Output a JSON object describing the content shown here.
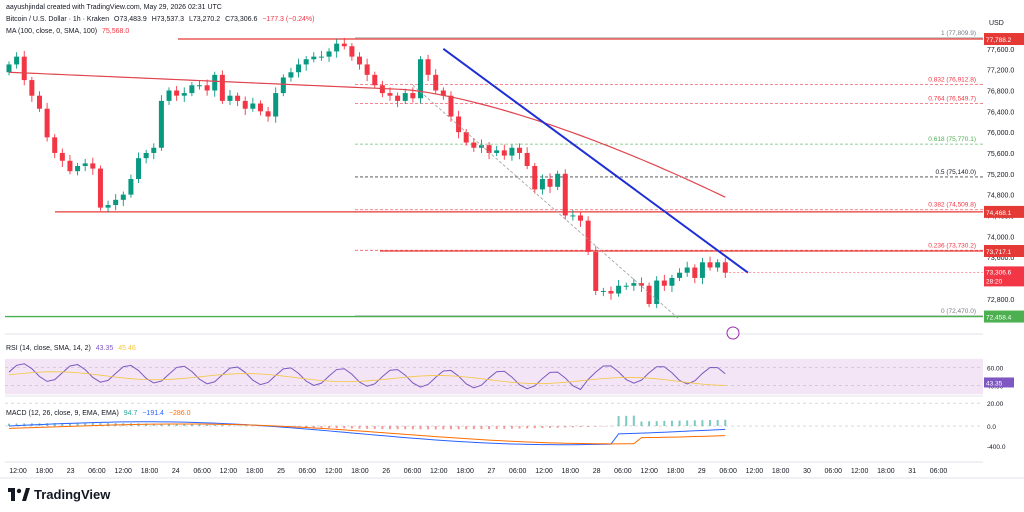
{
  "header": {
    "author_line": "aayushjindal created with TradingView.com, May 29, 2026 02:31 UTC",
    "symbol_line": "Bitcoin / U.S. Dollar · 1h · Kraken",
    "ohlc": [
      "O73,483.9",
      "H73,537.3",
      "L73,270.2",
      "C73,306.6",
      "−177.3 (−0.24%)"
    ],
    "ma_label": "MA (100, close, 0, SMA, 100)",
    "ma_value": "75,568.0",
    "rsi_label": "RSI (14, close, SMA, 14, 2)",
    "rsi_values": [
      "43.35",
      "45.46"
    ],
    "macd_label": "MACD (12, 26, close, 9, EMA, EMA)",
    "macd_values": [
      "94.7",
      "−191.4",
      "−286.0"
    ],
    "currency": "USD"
  },
  "footer": {
    "brand": "TradingView"
  },
  "colors": {
    "up": "#089981",
    "down": "#f23645",
    "trendline": "#1f2fd6",
    "ma": "#e0454f",
    "level": "#e53935",
    "support": "#4caf50",
    "rsi_band": "#f3e5f5",
    "rsi": "#7e57c2",
    "macd": "#2962ff",
    "signal": "#ff6d00"
  },
  "chart_data": {
    "type": "candlestick",
    "symbol": "Bitcoin / U.S. Dollar",
    "timeframe": "1h",
    "exchange": "Kraken",
    "price_scale": {
      "min": 72200,
      "max": 78000,
      "ticks": [
        72800,
        73200,
        73600,
        74000,
        74400,
        74800,
        75200,
        75600,
        76000,
        76400,
        76800,
        77200,
        77600
      ]
    },
    "x_ticks": [
      "12:00",
      "18:00",
      "23",
      "06:00",
      "12:00",
      "18:00",
      "24",
      "06:00",
      "12:00",
      "18:00",
      "25",
      "06:00",
      "12:00",
      "18:00",
      "26",
      "06:00",
      "12:00",
      "18:00",
      "27",
      "06:00",
      "12:00",
      "18:00",
      "28",
      "06:00",
      "12:00",
      "18:00",
      "29",
      "06:00",
      "12:00",
      "18:00",
      "30",
      "06:00",
      "12:00",
      "18:00",
      "31",
      "06:00"
    ],
    "candles_close": [
      77300,
      77450,
      77000,
      76700,
      76450,
      75900,
      75600,
      75450,
      75250,
      75350,
      75400,
      75300,
      74550,
      74600,
      74700,
      74800,
      75100,
      75500,
      75600,
      75700,
      76600,
      76800,
      76700,
      76750,
      76900,
      76900,
      76800,
      77100,
      76600,
      76700,
      76600,
      76450,
      76550,
      76400,
      76300,
      76750,
      77050,
      77150,
      77300,
      77400,
      77450,
      77450,
      77550,
      77700,
      77650,
      77450,
      77300,
      77100,
      76900,
      76750,
      76700,
      76600,
      76750,
      76650,
      77400,
      77100,
      76800,
      76700,
      76300,
      76000,
      75800,
      75700,
      75750,
      75600,
      75650,
      75550,
      75700,
      75600,
      75350,
      74900,
      75100,
      74950,
      75200,
      74400,
      74400,
      74300,
      73700,
      72950,
      72950,
      72900,
      73050,
      73050,
      73100,
      73050,
      72700,
      73150,
      73050,
      73200,
      73300,
      73400,
      73200,
      73500,
      73400,
      73500,
      73300
    ],
    "moving_average": {
      "name": "MA (100, close, 0, SMA, 100)",
      "last": 75568.0
    },
    "horizontal_levels": [
      {
        "name": "resistance-top",
        "price": 77788.2,
        "tag": "77,788.2"
      },
      {
        "name": "resistance-mid",
        "price": 74468.1,
        "tag": "74,468.1"
      },
      {
        "name": "resistance-near",
        "price": 73717.1,
        "tag": "73,717.1"
      },
      {
        "name": "support",
        "price": 72458.4,
        "tag": "72,458.4"
      }
    ],
    "current_price": {
      "price": 73306.6,
      "tag": "73,306.6",
      "countdown": "28:20"
    },
    "fibonacci": [
      {
        "ratio": "1",
        "price": 77809.9,
        "label": "1 (77,809.9)"
      },
      {
        "ratio": "0.832",
        "price": 76912.8,
        "label": "0.832 (76,912.8)"
      },
      {
        "ratio": "0.764",
        "price": 76549.7,
        "label": "0.764 (76,549.7)"
      },
      {
        "ratio": "0.618",
        "price": 75770.1,
        "label": "0.618 (75,770.1)"
      },
      {
        "ratio": "0.5",
        "price": 75140.0,
        "label": "0.5 (75,140.0)"
      },
      {
        "ratio": "0.382",
        "price": 74509.8,
        "label": "0.382 (74,509.8)"
      },
      {
        "ratio": "0.236",
        "price": 73730.2,
        "label": "0.236 (73,730.2)"
      },
      {
        "ratio": "0",
        "price": 72470.0,
        "label": "0 (72,470.0)"
      }
    ],
    "trendline": {
      "start": {
        "price": 77600
      },
      "end": {
        "price": 73300
      }
    },
    "rsi": {
      "name": "RSI (14, close, SMA, 14, 2)",
      "ticks": [
        20.0,
        40.0,
        60.0
      ],
      "band": [
        30,
        70
      ],
      "value": 43.35,
      "sma": 45.46
    },
    "macd": {
      "name": "MACD (12, 26, close, 9, EMA, EMA)",
      "ticks": [
        -400.0,
        0.0
      ],
      "histogram": 94.7,
      "macd": -191.4,
      "signal": -286.0
    }
  }
}
